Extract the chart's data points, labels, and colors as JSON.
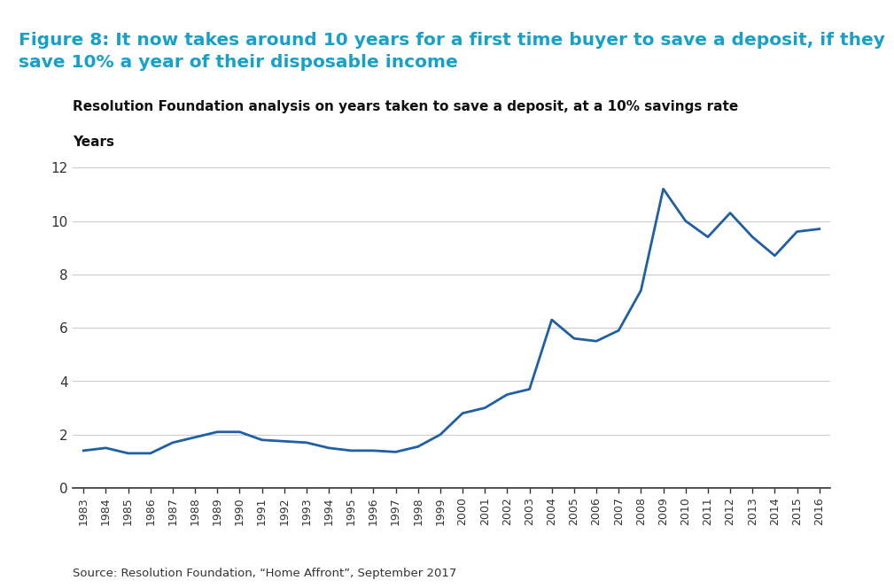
{
  "title_box_text": "Figure 8: It now takes around 10 years for a first time buyer to save a deposit, if they\nsave 10% a year of their disposable income",
  "subtitle": "Resolution Foundation analysis on years taken to save a deposit, at a 10% savings rate",
  "ylabel": "Years",
  "source": "Source: Resolution Foundation, “Home Affront”, September 2017",
  "title_box_bg": "#daeef7",
  "title_box_text_color": "#17a0c8",
  "line_color": "#1f5fa6",
  "years": [
    1983,
    1984,
    1985,
    1986,
    1987,
    1988,
    1989,
    1990,
    1991,
    1992,
    1993,
    1994,
    1995,
    1996,
    1997,
    1998,
    1999,
    2000,
    2001,
    2002,
    2003,
    2004,
    2005,
    2006,
    2007,
    2008,
    2009,
    2010,
    2011,
    2012,
    2013,
    2014,
    2015,
    2016
  ],
  "values": [
    1.4,
    1.5,
    1.3,
    1.3,
    1.7,
    1.9,
    2.1,
    2.1,
    1.8,
    1.75,
    1.7,
    1.5,
    1.4,
    1.4,
    1.35,
    1.55,
    2.0,
    2.8,
    3.0,
    3.5,
    3.7,
    6.3,
    5.6,
    5.5,
    5.9,
    7.4,
    11.2,
    10.0,
    9.4,
    10.3,
    9.4,
    8.7,
    9.6,
    9.7
  ],
  "ylim": [
    0,
    12
  ],
  "yticks": [
    0,
    2,
    4,
    6,
    8,
    10,
    12
  ],
  "bg_color": "#ffffff",
  "grid_color": "#cccccc",
  "line_width": 2.0,
  "title_fontsize": 14.5,
  "subtitle_fontsize": 11,
  "ylabel_fontsize": 11,
  "source_fontsize": 9.5,
  "ytick_fontsize": 11,
  "xtick_fontsize": 9
}
